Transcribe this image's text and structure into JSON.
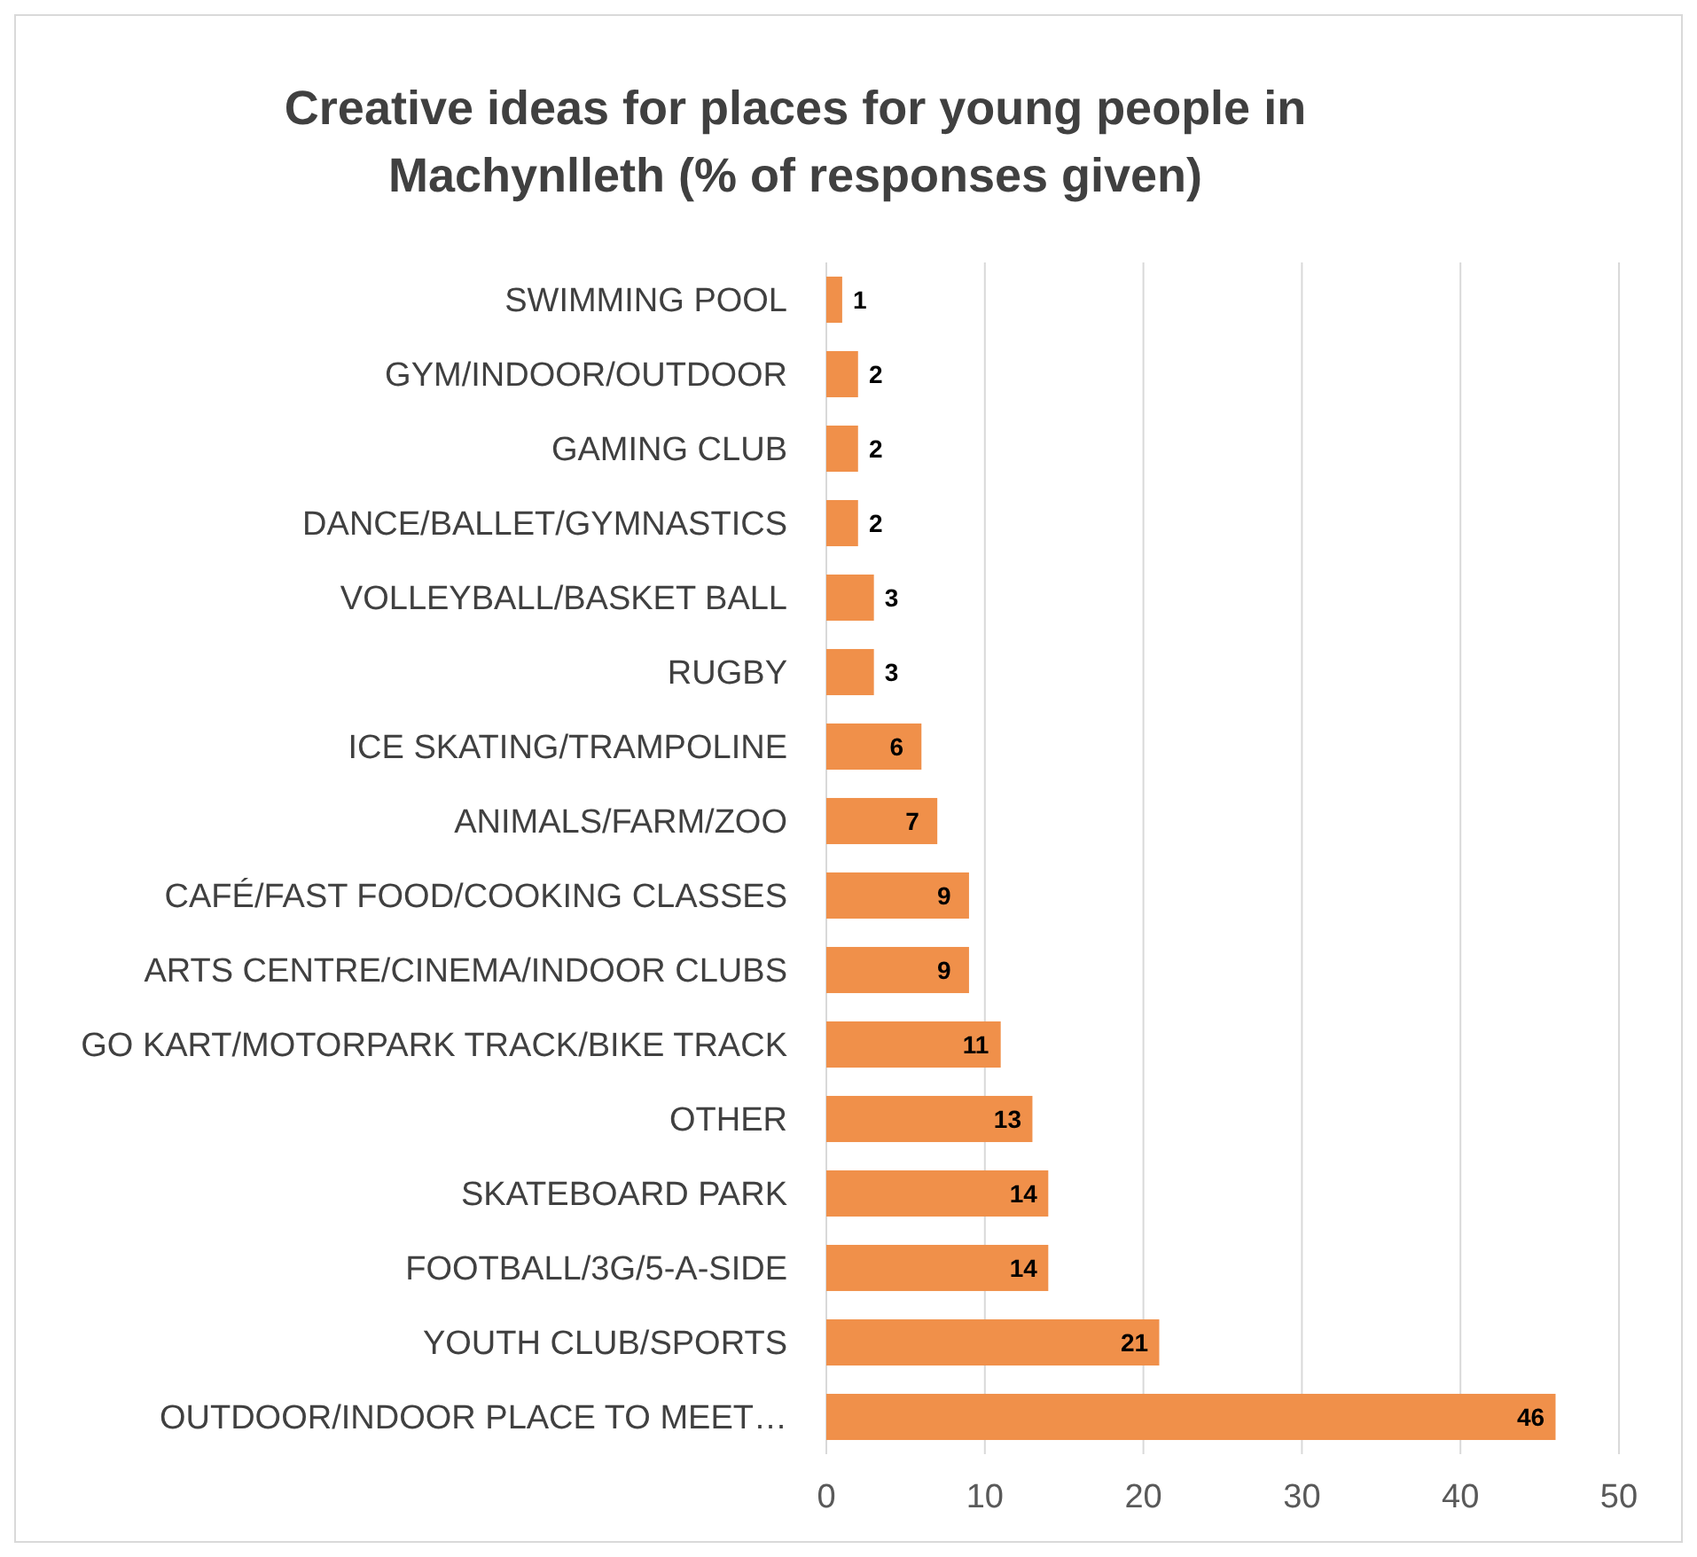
{
  "chart_data": {
    "type": "bar",
    "orientation": "horizontal",
    "title": "Creative ideas for places for young people in Machynlleth (% of responses given)",
    "categories": [
      "SWIMMING POOL",
      "GYM/INDOOR/OUTDOOR",
      "GAMING CLUB",
      "DANCE/BALLET/GYMNASTICS",
      "VOLLEYBALL/BASKET BALL",
      "RUGBY",
      "ICE SKATING/TRAMPOLINE",
      "ANIMALS/FARM/ZOO",
      "CAFÉ/FAST FOOD/COOKING CLASSES",
      "ARTS CENTRE/CINEMA/INDOOR CLUBS",
      "GO KART/MOTORPARK TRACK/BIKE TRACK",
      "OTHER",
      "SKATEBOARD PARK",
      "FOOTBALL/3G/5-A-SIDE",
      "YOUTH CLUB/SPORTS",
      "OUTDOOR/INDOOR PLACE TO MEET…"
    ],
    "values": [
      1,
      2,
      2,
      2,
      3,
      3,
      6,
      7,
      9,
      9,
      11,
      13,
      14,
      14,
      21,
      46
    ],
    "color": "#f0904a",
    "xlim": [
      0,
      50
    ],
    "xticks": [
      0,
      10,
      20,
      30,
      40,
      50
    ],
    "grid": "x",
    "data_labels": true
  }
}
